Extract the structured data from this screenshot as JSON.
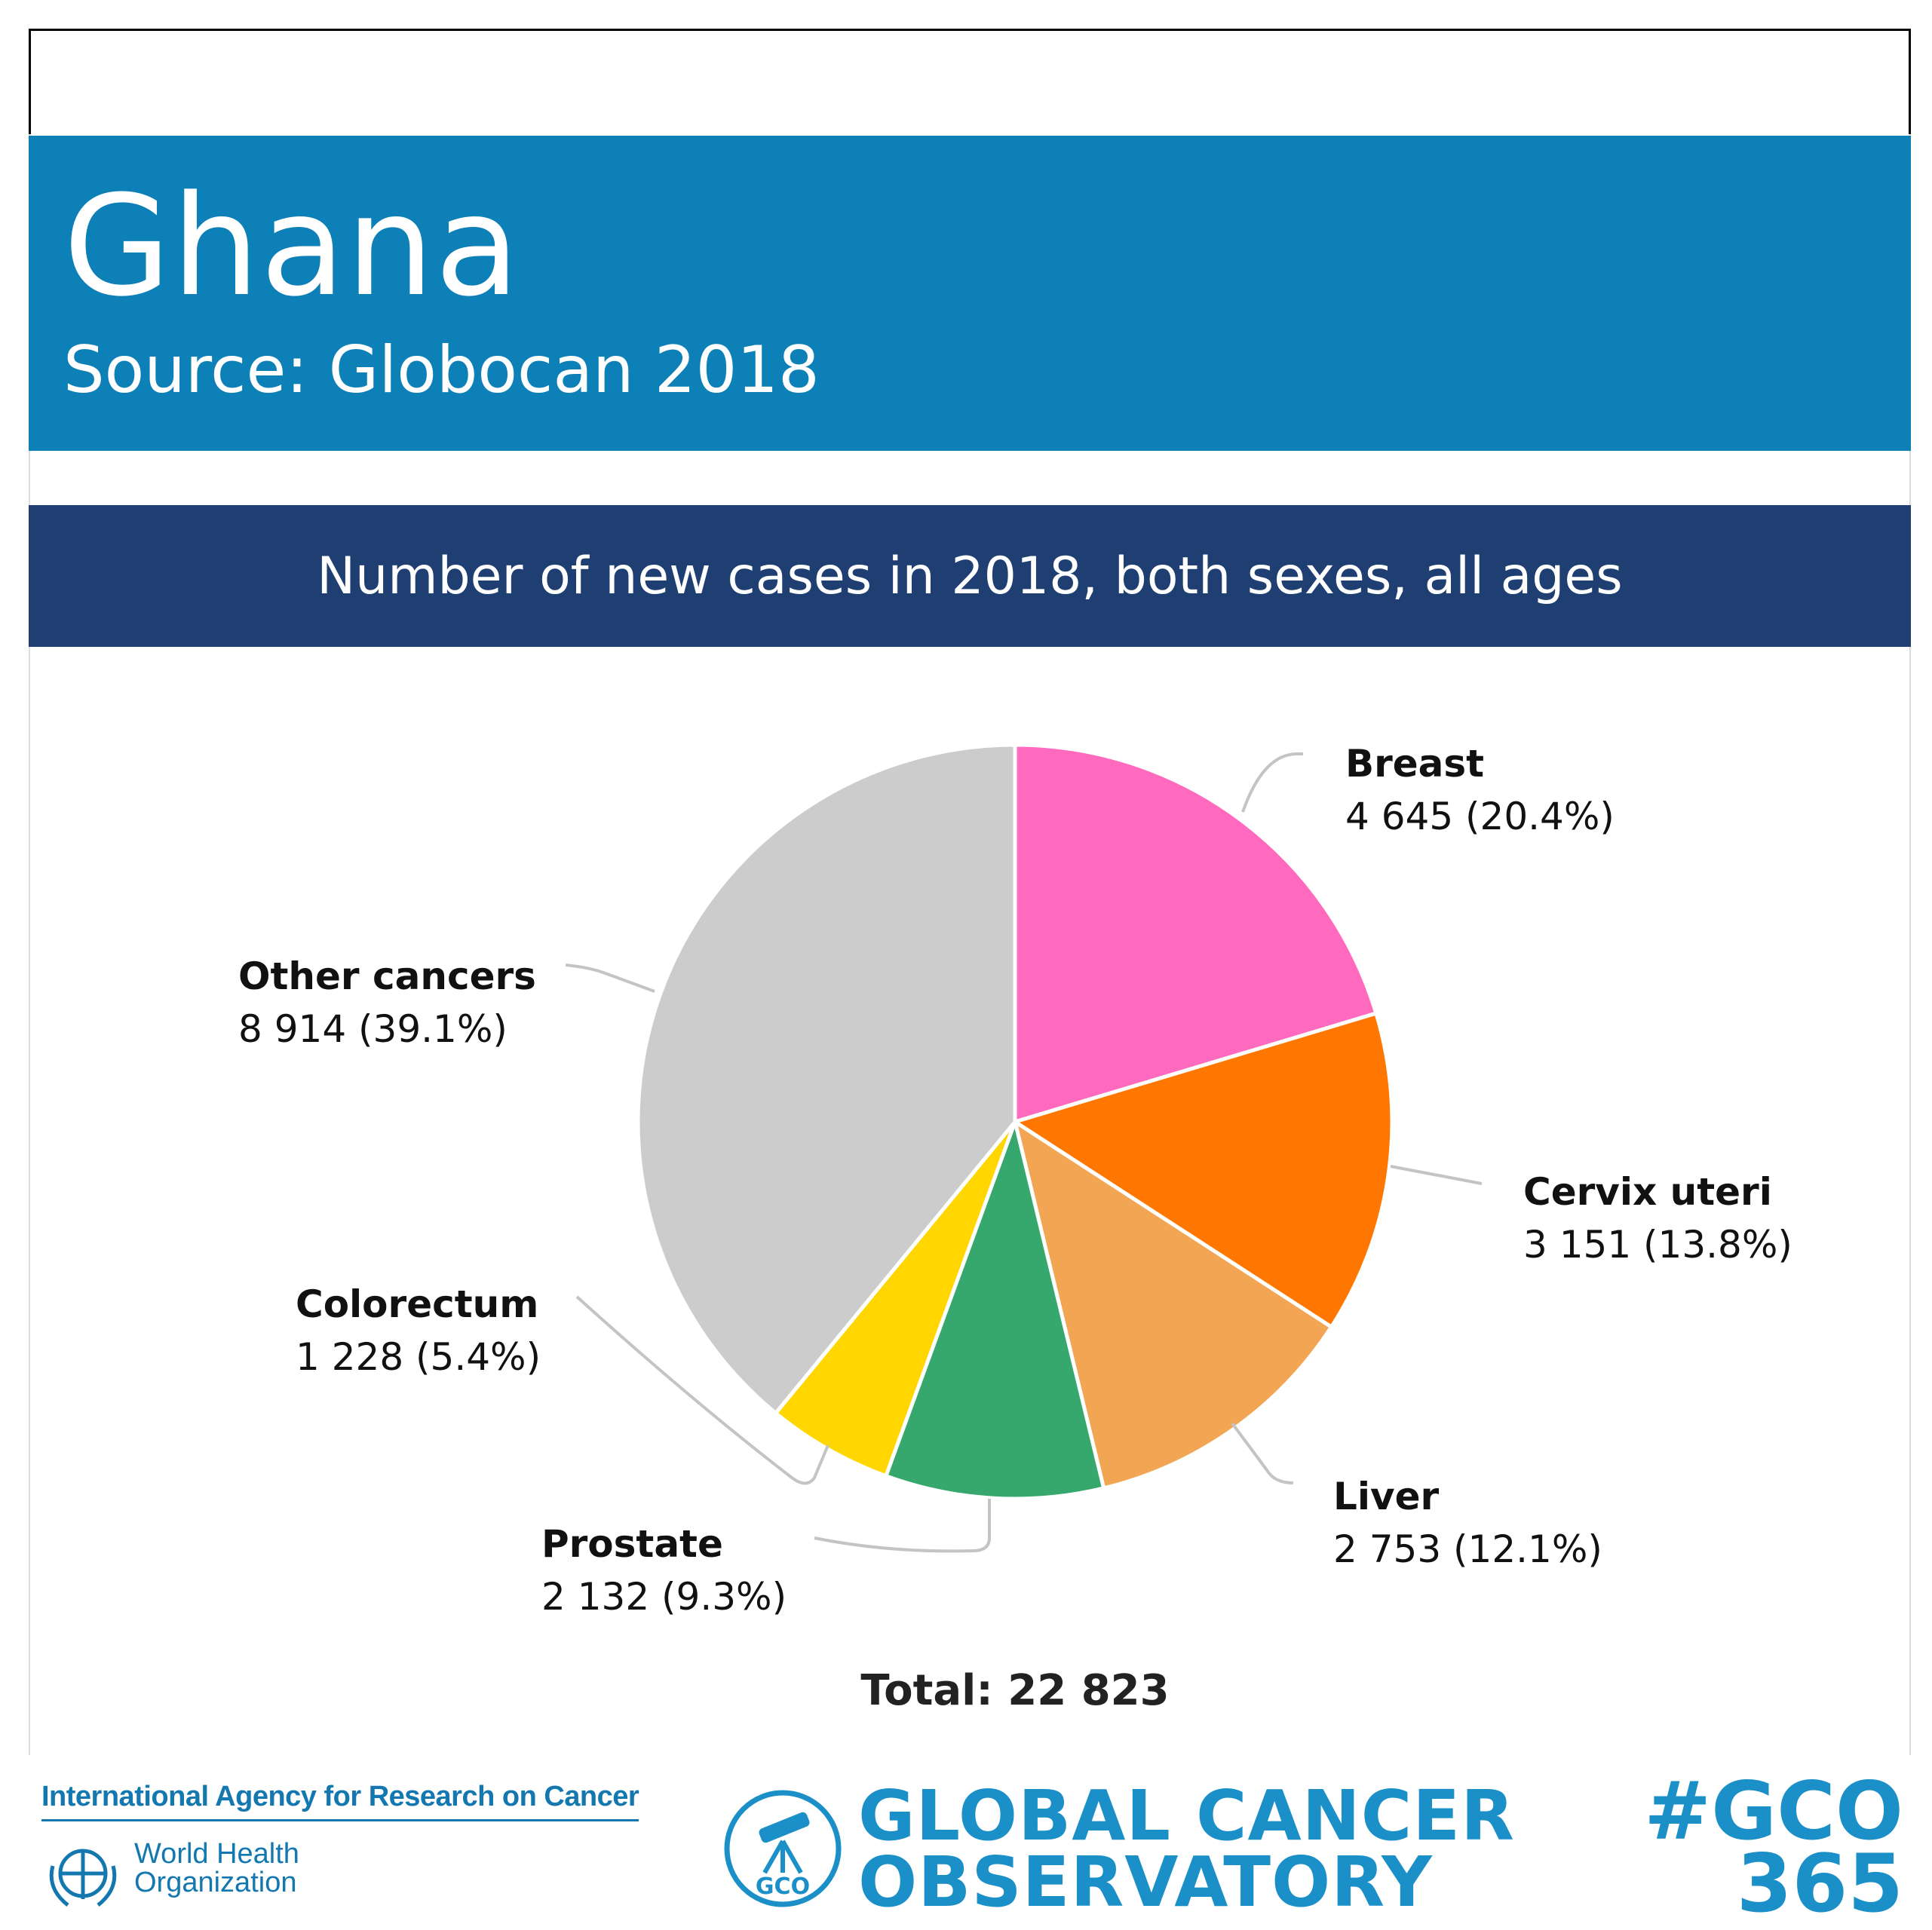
{
  "header": {
    "country": "Ghana",
    "source": "Source: Globocan 2018"
  },
  "subheader": {
    "text": "Number of new cases in 2018, both sexes, all ages"
  },
  "chart_data": {
    "type": "pie",
    "start_angle_deg": 0,
    "direction": "clockwise",
    "slices": [
      {
        "name": "Breast",
        "value": 4645,
        "label": "4 645 (20.4%)",
        "percent": 20.4,
        "color": "#ff69be"
      },
      {
        "name": "Cervix uteri",
        "value": 3151,
        "label": "3 151 (13.8%)",
        "percent": 13.8,
        "color": "#ff7600"
      },
      {
        "name": "Liver",
        "value": 2753,
        "label": "2 753 (12.1%)",
        "percent": 12.1,
        "color": "#f2a654"
      },
      {
        "name": "Prostate",
        "value": 2132,
        "label": "2 132 (9.3%)",
        "percent": 9.3,
        "color": "#36a86e"
      },
      {
        "name": "Colorectum",
        "value": 1228,
        "label": "1 228 (5.4%)",
        "percent": 5.4,
        "color": "#ffd600"
      },
      {
        "name": "Other cancers",
        "value": 8914,
        "label": "8 914 (39.1%)",
        "percent": 39.1,
        "color": "#cccccc"
      }
    ],
    "total_label": "Total: 22 823"
  },
  "footer": {
    "iarc": "International Agency for Research on Cancer",
    "who_line1": "World Health",
    "who_line2": "Organization",
    "gco_badge": "GCO",
    "gco_line1": "GLOBAL CANCER",
    "gco_line2": "OBSERVATORY",
    "hashtag_line1": "#GCO",
    "hashtag_line2": "365"
  }
}
